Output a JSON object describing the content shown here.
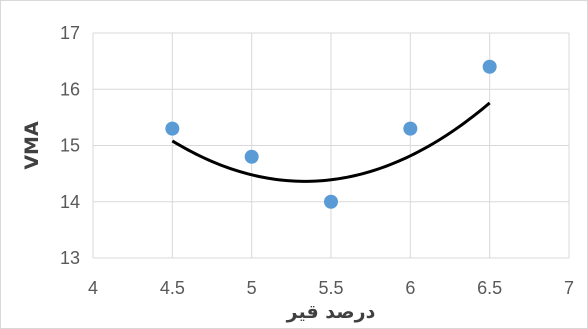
{
  "chart_data": {
    "type": "scatter",
    "xlabel": "درصد قیر",
    "ylabel": "VMA",
    "xlim": [
      4,
      7
    ],
    "ylim": [
      13,
      17
    ],
    "xticks": [
      4,
      4.5,
      5,
      5.5,
      6,
      6.5,
      7
    ],
    "yticks": [
      13,
      14,
      15,
      16,
      17
    ],
    "grid": true,
    "points": [
      {
        "x": 4.5,
        "y": 15.3
      },
      {
        "x": 5.0,
        "y": 14.8
      },
      {
        "x": 5.5,
        "y": 14.0
      },
      {
        "x": 6.0,
        "y": 15.3
      },
      {
        "x": 6.5,
        "y": 16.4
      }
    ],
    "trendline": {
      "type": "polynomial",
      "order": 2,
      "coefficients": [
        1.0286,
        -10.977,
        43.649
      ],
      "x_range": [
        4.5,
        6.5
      ]
    },
    "colors": {
      "points": "#5b9bd5",
      "trendline": "#000000",
      "grid": "#d9d9d9"
    }
  }
}
